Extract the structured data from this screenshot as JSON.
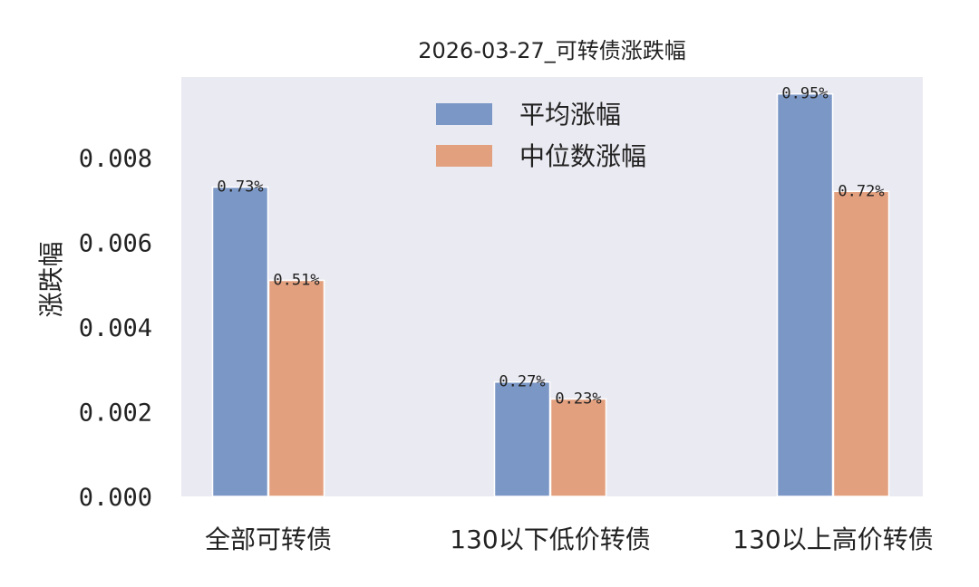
{
  "chart_data": {
    "type": "bar",
    "title": "2026-03-27_可转债涨跌幅",
    "xlabel": "",
    "ylabel": "涨跌幅",
    "categories": [
      "全部可转债",
      "130以下低价转债",
      "130以上高价转债"
    ],
    "series": [
      {
        "name": "平均涨幅",
        "values": [
          0.0073,
          0.0027,
          0.0095
        ],
        "labels": [
          "0.73%",
          "0.27%",
          "0.95%"
        ]
      },
      {
        "name": "中位数涨幅",
        "values": [
          0.0051,
          0.0023,
          0.0072
        ],
        "labels": [
          "0.51%",
          "0.23%",
          "0.72%"
        ]
      }
    ],
    "yticks": [
      "0.000",
      "0.002",
      "0.004",
      "0.006",
      "0.008"
    ],
    "ylim": [
      0,
      0.0099
    ],
    "grid": false,
    "legend_position": "top-center",
    "colors": {
      "series": [
        "#7b97c6",
        "#e3a07f"
      ],
      "background": "#eaeaf2"
    }
  }
}
